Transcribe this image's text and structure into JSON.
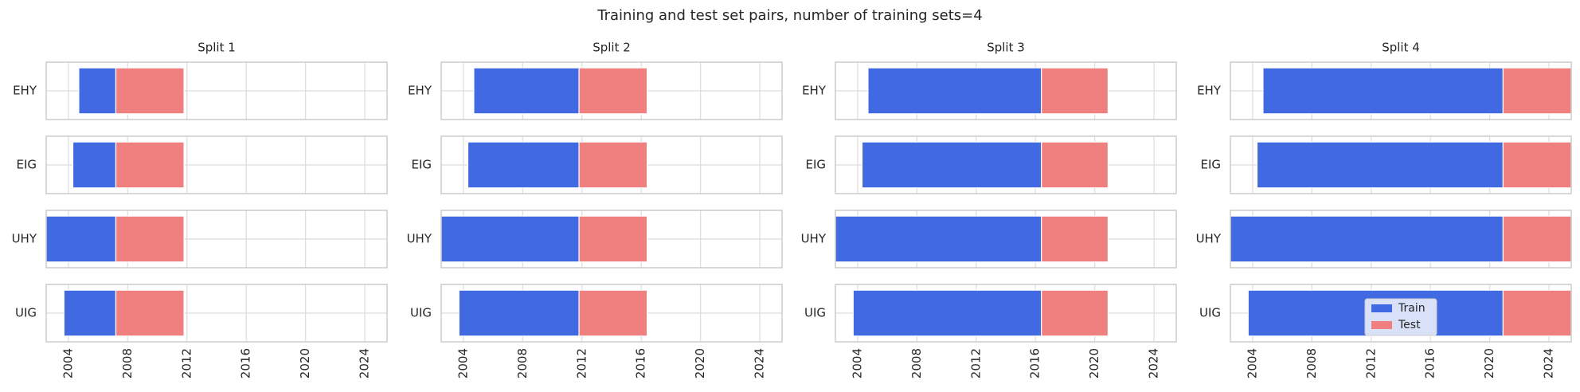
{
  "chart_data": {
    "type": "range-bar",
    "title": "Training and test set pairs, number of training sets=4",
    "categories": [
      "EHY",
      "EIG",
      "UHY",
      "UIG"
    ],
    "xlim": [
      2002.5,
      2025.5
    ],
    "xticks": [
      2004,
      2008,
      2012,
      2016,
      2020,
      2024
    ],
    "grid": true,
    "legend": "lower center",
    "series": [
      {
        "name": "Train",
        "color": "#4169e1"
      },
      {
        "name": "Test",
        "color": "#f08080"
      }
    ],
    "panels": [
      {
        "title": "Split 1",
        "train_start": [
          2004.7,
          2004.3,
          2002.5,
          2003.7
        ],
        "train_end": 2007.2,
        "test_end": 2011.8
      },
      {
        "title": "Split 2",
        "train_start": [
          2004.7,
          2004.3,
          2002.5,
          2003.7
        ],
        "train_end": 2011.8,
        "test_end": 2016.4
      },
      {
        "title": "Split 3",
        "train_start": [
          2004.7,
          2004.3,
          2002.5,
          2003.7
        ],
        "train_end": 2016.4,
        "test_end": 2020.9
      },
      {
        "title": "Split 4",
        "train_start": [
          2004.7,
          2004.3,
          2002.5,
          2003.7
        ],
        "train_end": 2020.9,
        "test_end": 2025.5
      }
    ]
  }
}
